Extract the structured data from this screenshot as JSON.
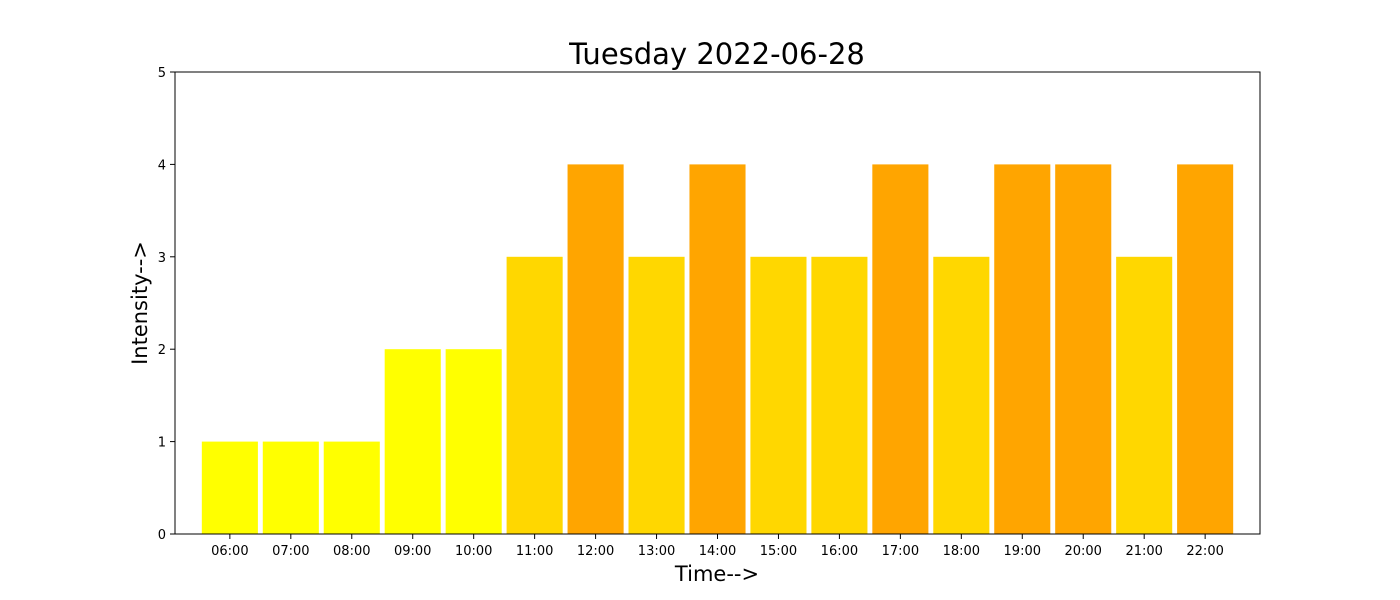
{
  "chart_data": {
    "type": "bar",
    "title": "Tuesday 2022-06-28",
    "xlabel": "Time-->",
    "ylabel": "Intensity-->",
    "categories": [
      "06:00",
      "07:00",
      "08:00",
      "09:00",
      "10:00",
      "11:00",
      "12:00",
      "13:00",
      "14:00",
      "15:00",
      "16:00",
      "17:00",
      "18:00",
      "19:00",
      "20:00",
      "21:00",
      "22:00"
    ],
    "values": [
      1,
      1,
      1,
      2,
      2,
      3,
      4,
      3,
      4,
      3,
      3,
      4,
      3,
      4,
      4,
      3,
      4
    ],
    "ylim": [
      0,
      5
    ],
    "yticks": [
      "0",
      "1",
      "2",
      "3",
      "4",
      "5"
    ],
    "grid": false,
    "colors": {
      "1": "#ffff00",
      "2": "#ffff00",
      "3": "#ffd700",
      "4": "#ffa500"
    }
  }
}
